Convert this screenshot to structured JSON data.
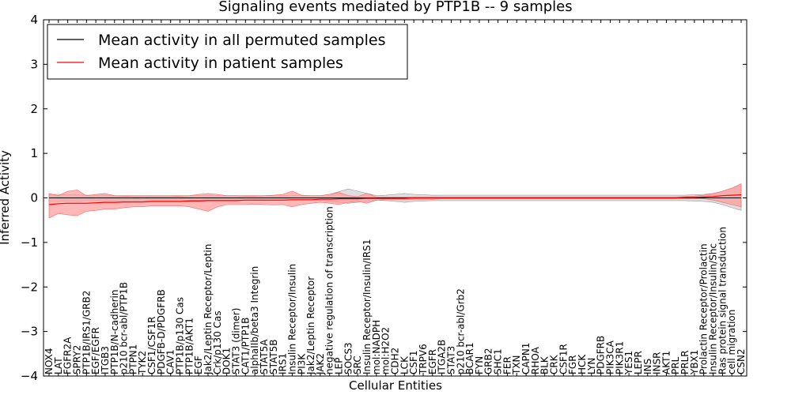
{
  "chart_data": {
    "type": "line",
    "title": "Signaling events mediated by PTP1B -- 9 samples",
    "xlabel": "Cellular Entities",
    "ylabel": "Inferred Activity",
    "ylim": [
      -4,
      4
    ],
    "yticks": [
      -4,
      -3,
      -2,
      -1,
      0,
      1,
      2,
      3,
      4
    ],
    "ytick_labels": [
      "−4",
      "−3",
      "−2",
      "−1",
      "0",
      "1",
      "2",
      "3",
      "4"
    ],
    "legend_position": "top-left",
    "categories": [
      "NOX4",
      "LAT",
      "FGFR2A",
      "SPRY2",
      "PTP1B/IRS1/GRB2",
      "EGF/EGFR",
      "ITGB3",
      "PTP1B/N-cadherin",
      "p210 bcr-abl/PTP1B",
      "PTPN1",
      "TYK2",
      "CSF1/CSF1R",
      "PDGFB-D/PDGFRB",
      "CAV1",
      "PTP1B/p130 Cas",
      "PTP1B/AKT1",
      "EGF",
      "Jak2/Leptin Receptor/Leptin",
      "Crk/p130 Cas",
      "DOK1",
      "STAT3 (dimer)",
      "CAT1/PTP1B",
      "alphaIIb/beta3 Integrin",
      "STAT5A",
      "STAT5B",
      "IRS1",
      "Insulin Receptor/Insulin",
      "PI3K",
      "Jak2/Leptin Receptor",
      "JAK2",
      "negative regulation of transcription",
      "LEP",
      "SOCS3",
      "SRC",
      "Insulin Receptor/Insulin/IRS1",
      "mol:NADPH",
      "mol:H2O2",
      "CDH2",
      "LCK",
      "CSF1",
      "TRPV6",
      "EGFR",
      "ITGA2B",
      "STAT3",
      "p210 bcr-abl/Grb2",
      "BCAR1",
      "FYN",
      "GRB2",
      "SHC1",
      "FER",
      "TXN",
      "CAPN1",
      "RHOA",
      "BLK",
      "CRK",
      "CSF1R",
      "FGR",
      "HCK",
      "LYN",
      "PDGFRB",
      "PIK3CA",
      "PIK3R1",
      "YES1",
      "LEPR",
      "INS",
      "INSR",
      "AKT1",
      "PRL",
      "PRLR",
      "YBX1",
      "Prolactin Receptor/Prolactin",
      "Insulin Receptor/Insulin/Shc",
      "Ras protein signal transduction",
      "cell migration",
      "CSN2"
    ],
    "series": [
      {
        "name": "Mean activity in all permuted samples",
        "color": "#000000",
        "band_color": "#cccccc",
        "values": [
          0,
          0,
          0,
          0,
          0,
          0,
          0,
          0,
          0,
          0,
          0,
          0,
          0,
          0,
          0,
          0,
          0,
          0,
          0,
          0,
          0,
          0,
          0,
          0,
          0,
          0,
          0,
          0,
          0,
          0,
          0,
          0,
          0,
          0,
          0,
          0,
          0,
          0,
          0,
          0,
          0,
          0,
          0,
          0,
          0,
          0,
          0,
          0,
          0,
          0,
          0,
          0,
          0,
          0,
          0,
          0,
          0,
          0,
          0,
          0,
          0,
          0,
          0,
          0,
          0,
          0,
          0,
          0,
          0,
          0,
          0,
          0,
          0,
          0,
          0
        ],
        "band_low": [
          -0.08,
          -0.08,
          -0.07,
          -0.07,
          -0.06,
          -0.06,
          -0.06,
          -0.05,
          -0.05,
          -0.05,
          -0.05,
          -0.05,
          -0.05,
          -0.05,
          -0.05,
          -0.05,
          -0.05,
          -0.05,
          -0.05,
          -0.05,
          -0.05,
          -0.05,
          -0.05,
          -0.05,
          -0.05,
          -0.05,
          -0.05,
          -0.05,
          -0.05,
          -0.05,
          -0.08,
          -0.1,
          -0.12,
          -0.1,
          -0.08,
          -0.05,
          -0.06,
          -0.08,
          -0.1,
          -0.08,
          -0.07,
          -0.06,
          -0.06,
          -0.06,
          -0.06,
          -0.06,
          -0.06,
          -0.06,
          -0.06,
          -0.06,
          -0.06,
          -0.06,
          -0.06,
          -0.06,
          -0.06,
          -0.06,
          -0.06,
          -0.06,
          -0.06,
          -0.06,
          -0.06,
          -0.06,
          -0.06,
          -0.06,
          -0.06,
          -0.06,
          -0.06,
          -0.06,
          -0.06,
          -0.07,
          -0.08,
          -0.1,
          -0.15,
          -0.22,
          -0.28
        ],
        "band_high": [
          0.08,
          0.08,
          0.07,
          0.07,
          0.06,
          0.06,
          0.06,
          0.05,
          0.05,
          0.05,
          0.05,
          0.05,
          0.05,
          0.05,
          0.05,
          0.05,
          0.05,
          0.05,
          0.05,
          0.05,
          0.05,
          0.05,
          0.05,
          0.05,
          0.05,
          0.05,
          0.05,
          0.05,
          0.05,
          0.05,
          0.08,
          0.14,
          0.2,
          0.15,
          0.1,
          0.05,
          0.06,
          0.08,
          0.1,
          0.08,
          0.07,
          0.06,
          0.06,
          0.06,
          0.06,
          0.06,
          0.06,
          0.06,
          0.06,
          0.06,
          0.06,
          0.06,
          0.06,
          0.06,
          0.06,
          0.06,
          0.06,
          0.06,
          0.06,
          0.06,
          0.06,
          0.06,
          0.06,
          0.06,
          0.06,
          0.06,
          0.06,
          0.06,
          0.06,
          0.07,
          0.08,
          0.1,
          0.15,
          0.22,
          0.28
        ]
      },
      {
        "name": "Mean activity in patient samples",
        "color": "#ff0000",
        "band_color": "#ff9999",
        "values": [
          -0.15,
          -0.13,
          -0.12,
          -0.12,
          -0.12,
          -0.11,
          -0.1,
          -0.1,
          -0.09,
          -0.09,
          -0.09,
          -0.08,
          -0.08,
          -0.08,
          -0.08,
          -0.07,
          -0.07,
          -0.06,
          -0.06,
          -0.06,
          -0.06,
          -0.05,
          -0.05,
          -0.05,
          -0.05,
          -0.05,
          -0.04,
          -0.04,
          -0.04,
          -0.03,
          -0.03,
          -0.02,
          -0.02,
          -0.02,
          -0.01,
          -0.01,
          -0.01,
          -0.01,
          -0.01,
          0,
          0,
          0,
          0,
          0,
          0,
          0,
          0,
          0,
          0,
          0,
          0,
          0,
          0,
          0,
          0,
          0,
          0,
          0,
          0,
          0,
          0,
          0,
          0,
          0,
          0,
          0,
          0,
          0,
          0.01,
          0.01,
          0.02,
          0.03,
          0.05,
          0.06,
          0.07
        ],
        "band_low": [
          -0.45,
          -0.35,
          -0.38,
          -0.4,
          -0.3,
          -0.28,
          -0.25,
          -0.25,
          -0.22,
          -0.2,
          -0.2,
          -0.18,
          -0.18,
          -0.18,
          -0.18,
          -0.2,
          -0.25,
          -0.3,
          -0.2,
          -0.15,
          -0.15,
          -0.15,
          -0.14,
          -0.15,
          -0.16,
          -0.15,
          -0.2,
          -0.15,
          -0.12,
          -0.1,
          -0.12,
          -0.15,
          -0.1,
          -0.08,
          -0.12,
          -0.05,
          -0.04,
          -0.04,
          -0.04,
          -0.03,
          -0.03,
          -0.03,
          -0.02,
          -0.02,
          -0.02,
          -0.02,
          -0.02,
          -0.02,
          -0.02,
          -0.02,
          -0.02,
          -0.02,
          -0.02,
          -0.02,
          -0.02,
          -0.02,
          -0.02,
          -0.02,
          -0.02,
          -0.02,
          -0.02,
          -0.02,
          -0.02,
          -0.02,
          -0.02,
          -0.02,
          -0.02,
          -0.02,
          -0.02,
          -0.02,
          -0.02,
          -0.05,
          -0.1,
          -0.15,
          -0.2
        ],
        "band_high": [
          0.1,
          0.05,
          0.15,
          0.18,
          0.05,
          0.08,
          0.1,
          0.05,
          0.04,
          0.03,
          0.03,
          0.03,
          0.03,
          0.03,
          0.04,
          0.05,
          0.08,
          0.1,
          0.08,
          0.05,
          0.05,
          0.04,
          0.04,
          0.05,
          0.06,
          0.08,
          0.15,
          0.06,
          0.05,
          0.05,
          0.08,
          0.12,
          0.05,
          0.03,
          0.1,
          0.02,
          0.02,
          0.02,
          0.02,
          0.02,
          0.02,
          0.02,
          0.02,
          0.02,
          0.02,
          0.02,
          0.02,
          0.02,
          0.02,
          0.02,
          0.02,
          0.02,
          0.02,
          0.02,
          0.02,
          0.02,
          0.02,
          0.02,
          0.02,
          0.02,
          0.02,
          0.02,
          0.02,
          0.02,
          0.02,
          0.02,
          0.02,
          0.02,
          0.03,
          0.04,
          0.06,
          0.1,
          0.15,
          0.22,
          0.32
        ]
      }
    ]
  }
}
